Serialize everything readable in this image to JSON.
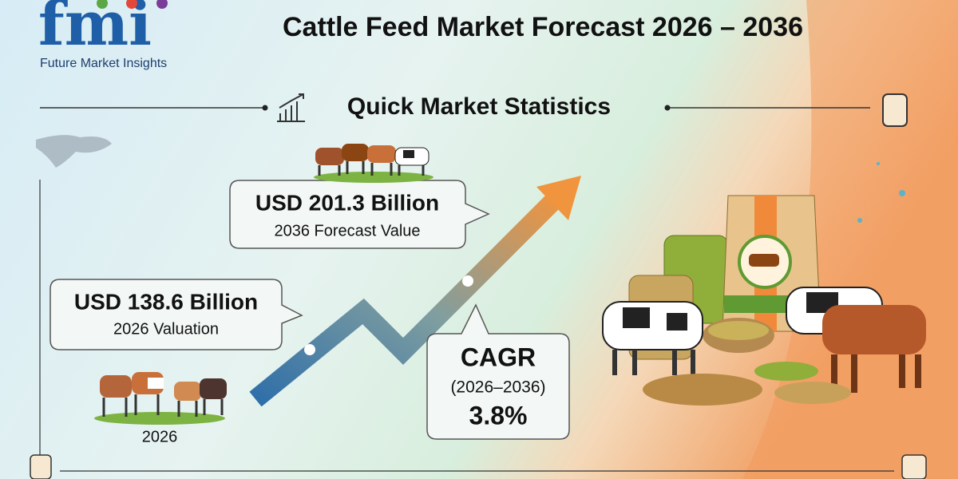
{
  "logo": {
    "mark": "fmi",
    "name": "Future Market Insights"
  },
  "header": {
    "title": "Cattle Feed Market Forecast 2026 – 2036"
  },
  "section": {
    "title": "Quick Market Statistics"
  },
  "forecast": {
    "value": "USD 201.3 Billion",
    "label": "2036 Forecast Value"
  },
  "valuation": {
    "value": "USD 138.6 Billion",
    "label": "2026 Valuation",
    "year": "2026"
  },
  "cagr": {
    "title": "CAGR",
    "period": "(2026–2036)",
    "value": "3.8%"
  }
}
